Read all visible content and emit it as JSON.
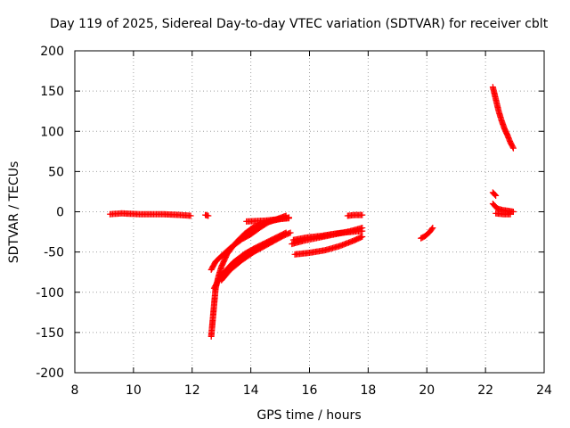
{
  "chart_data": {
    "type": "scatter",
    "title": "Day 119 of 2025, Sidereal Day-to-day VTEC variation (SDTVAR) for receiver cblt",
    "xlabel": "GPS time / hours",
    "ylabel": "SDTVAR / TECUs",
    "xlim": [
      8,
      24
    ],
    "ylim": [
      -200,
      200
    ],
    "xticks": [
      8,
      10,
      12,
      14,
      16,
      18,
      20,
      22,
      24
    ],
    "yticks": [
      -200,
      -150,
      -100,
      -50,
      0,
      50,
      100,
      150,
      200
    ],
    "grid": true,
    "marker": "+",
    "color": "#ff0000",
    "series": [
      {
        "segments": [
          [
            [
              9.2,
              -3
            ],
            [
              9.6,
              -2
            ],
            [
              10.2,
              -3
            ],
            [
              11.0,
              -3
            ],
            [
              11.6,
              -4
            ],
            [
              11.95,
              -5
            ]
          ],
          [
            [
              12.45,
              -4
            ],
            [
              12.55,
              -5
            ]
          ],
          [
            [
              12.65,
              -155
            ],
            [
              12.7,
              -135
            ],
            [
              12.75,
              -115
            ],
            [
              12.8,
              -95
            ],
            [
              12.9,
              -80
            ],
            [
              13.0,
              -68
            ],
            [
              13.2,
              -52
            ],
            [
              13.5,
              -38
            ],
            [
              13.8,
              -27
            ],
            [
              14.1,
              -19
            ],
            [
              14.5,
              -13
            ],
            [
              15.0,
              -9
            ],
            [
              15.3,
              -7
            ]
          ],
          [
            [
              12.65,
              -72
            ],
            [
              12.8,
              -62
            ],
            [
              13.0,
              -55
            ],
            [
              13.3,
              -45
            ],
            [
              13.7,
              -34
            ],
            [
              14.0,
              -28
            ],
            [
              14.3,
              -20
            ],
            [
              14.6,
              -13
            ],
            [
              14.9,
              -9
            ],
            [
              15.2,
              -5
            ]
          ],
          [
            [
              12.75,
              -95
            ],
            [
              12.9,
              -85
            ],
            [
              13.1,
              -75
            ],
            [
              13.4,
              -63
            ],
            [
              13.8,
              -52
            ],
            [
              14.2,
              -44
            ],
            [
              14.7,
              -35
            ],
            [
              15.2,
              -26
            ]
          ],
          [
            [
              13.0,
              -85
            ],
            [
              13.3,
              -72
            ],
            [
              13.7,
              -60
            ],
            [
              14.1,
              -50
            ],
            [
              14.6,
              -40
            ],
            [
              15.1,
              -30
            ],
            [
              15.35,
              -26
            ]
          ],
          [
            [
              13.85,
              -12
            ],
            [
              14.5,
              -11
            ],
            [
              15.0,
              -9
            ],
            [
              15.3,
              -8
            ]
          ],
          [
            [
              15.4,
              -40
            ],
            [
              15.8,
              -36
            ],
            [
              16.2,
              -33
            ],
            [
              16.6,
              -30
            ],
            [
              17.0,
              -27
            ],
            [
              17.4,
              -24
            ],
            [
              17.8,
              -20
            ]
          ],
          [
            [
              15.45,
              -35
            ],
            [
              15.9,
              -32
            ],
            [
              16.4,
              -30
            ],
            [
              16.9,
              -27
            ],
            [
              17.4,
              -25
            ],
            [
              17.8,
              -24
            ]
          ],
          [
            [
              15.5,
              -53
            ],
            [
              16.0,
              -51
            ],
            [
              16.5,
              -48
            ],
            [
              17.0,
              -43
            ],
            [
              17.5,
              -36
            ],
            [
              17.8,
              -31
            ]
          ],
          [
            [
              17.3,
              -5
            ],
            [
              17.55,
              -4
            ],
            [
              17.8,
              -4
            ]
          ],
          [
            [
              19.8,
              -33
            ],
            [
              19.95,
              -30
            ],
            [
              20.1,
              -25
            ],
            [
              20.2,
              -20
            ]
          ],
          [
            [
              22.25,
              155
            ],
            [
              22.35,
              140
            ],
            [
              22.45,
              125
            ],
            [
              22.55,
              113
            ],
            [
              22.65,
              103
            ],
            [
              22.75,
              95
            ],
            [
              22.85,
              86
            ],
            [
              22.95,
              79
            ]
          ],
          [
            [
              22.25,
              24
            ],
            [
              22.35,
              20
            ]
          ],
          [
            [
              22.25,
              10
            ],
            [
              22.4,
              4
            ],
            [
              22.6,
              2
            ],
            [
              22.8,
              1
            ],
            [
              22.95,
              0
            ]
          ],
          [
            [
              22.35,
              -2
            ],
            [
              22.6,
              -3
            ],
            [
              22.85,
              -3
            ]
          ]
        ]
      }
    ]
  }
}
